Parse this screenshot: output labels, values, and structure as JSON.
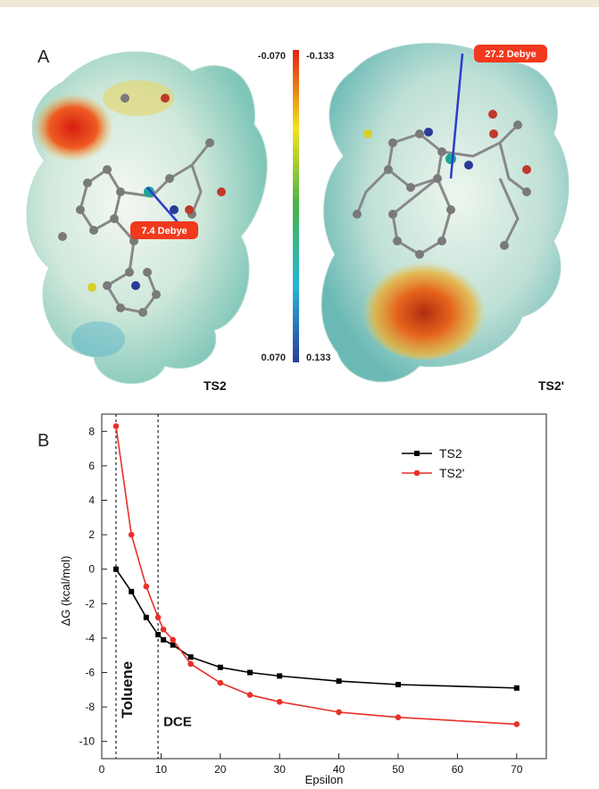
{
  "panel_a": {
    "label": "A",
    "left_molecule_label": "TS2",
    "right_molecule_label": "TS2'",
    "left_dipole": "7.4 Debye",
    "right_dipole": "27.2 Debye",
    "colorbar": {
      "top_left": "-0.070",
      "top_right": "-0.133",
      "bottom_left": "0.070",
      "bottom_right": "0.133"
    }
  },
  "chart_data": {
    "panel_label": "B",
    "type": "line",
    "xlabel": "Epsilon",
    "ylabel": "ΔG (kcal/mol)",
    "xlim": [
      0,
      75
    ],
    "ylim": [
      -11,
      9
    ],
    "xticks": [
      0,
      10,
      20,
      30,
      40,
      50,
      60,
      70
    ],
    "yticks": [
      8,
      6,
      4,
      2,
      0,
      -2,
      -4,
      -6,
      -8,
      -10
    ],
    "legend_position": "top-right",
    "grid": false,
    "series": [
      {
        "name": "TS2",
        "color": "#000000",
        "x": [
          2.4,
          5,
          7.5,
          9.5,
          10.4,
          12,
          15,
          20,
          25,
          30,
          40,
          50,
          70
        ],
        "y": [
          0.0,
          -1.3,
          -2.8,
          -3.8,
          -4.1,
          -4.4,
          -5.1,
          -5.7,
          -6.0,
          -6.2,
          -6.5,
          -6.7,
          -6.9
        ]
      },
      {
        "name": "TS2'",
        "color": "#e8302a",
        "x": [
          2.4,
          5,
          7.5,
          9.5,
          10.4,
          12,
          15,
          20,
          25,
          30,
          40,
          50,
          70
        ],
        "y": [
          8.3,
          2.0,
          -1.0,
          -2.8,
          -3.5,
          -4.1,
          -5.5,
          -6.6,
          -7.3,
          -7.7,
          -8.3,
          -8.6,
          -9.0
        ]
      }
    ],
    "annotations": [
      {
        "text": "Toluene",
        "x": 2.4
      },
      {
        "text": "DCE",
        "x": 9.5
      }
    ]
  }
}
